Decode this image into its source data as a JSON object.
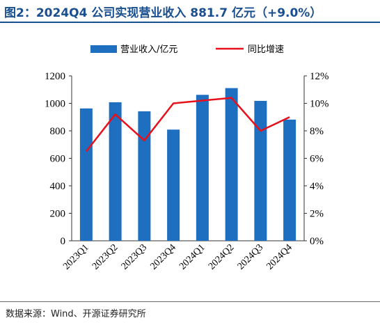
{
  "figure": {
    "title": "图2：2024Q4 公司实现营业收入 881.7 亿元（+9.0%）",
    "source": "数据来源：Wind、开源证券研究所",
    "accent_color": "#1a4f8f"
  },
  "chart_data": {
    "type": "bar",
    "categories": [
      "2023Q1",
      "2023Q2",
      "2023Q3",
      "2023Q4",
      "2024Q1",
      "2024Q2",
      "2024Q3",
      "2024Q4"
    ],
    "series": [
      {
        "name": "营业收入/亿元",
        "type": "bar",
        "axis": "left",
        "color": "#1f6fc1",
        "values": [
          963,
          1008,
          942,
          809,
          1062,
          1111,
          1018,
          881.7
        ]
      },
      {
        "name": "同比增速",
        "type": "line",
        "axis": "right",
        "color": "#e8101a",
        "values": [
          6.5,
          9.2,
          7.3,
          10.0,
          10.2,
          10.4,
          8.0,
          9.0
        ]
      }
    ],
    "y_left": {
      "range": [
        0,
        1200
      ],
      "ticks": [
        0,
        200,
        400,
        600,
        800,
        1000,
        1200
      ]
    },
    "y_right": {
      "range": [
        0,
        12
      ],
      "ticks": [
        "0%",
        "2%",
        "4%",
        "6%",
        "8%",
        "10%",
        "12%"
      ]
    },
    "legend_position": "top-center",
    "grid": false
  }
}
